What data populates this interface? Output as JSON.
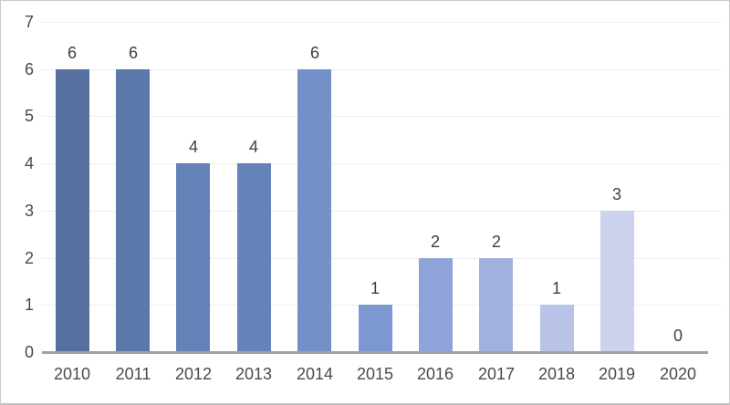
{
  "chart_data": {
    "type": "bar",
    "title": "",
    "xlabel": "",
    "ylabel": "",
    "categories": [
      "2010",
      "2011",
      "2012",
      "2013",
      "2014",
      "2015",
      "2016",
      "2017",
      "2018",
      "2019",
      "2020"
    ],
    "values": [
      6,
      6,
      4,
      4,
      6,
      1,
      2,
      2,
      1,
      3,
      0
    ],
    "data_labels": [
      "6",
      "6",
      "4",
      "4",
      "6",
      "1",
      "2",
      "2",
      "1",
      "3",
      "0"
    ],
    "ylim": [
      0,
      7
    ],
    "yticks": [
      "0",
      "1",
      "2",
      "3",
      "4",
      "5",
      "6",
      "7"
    ],
    "grid": true,
    "legend": false,
    "bar_colors": [
      "#56719F",
      "#5C78AB",
      "#6282B8",
      "#6684BC",
      "#7490C8",
      "#7C97D1",
      "#8EA3D8",
      "#A3B1DF",
      "#B9C3E7",
      "#CDD3ED",
      "#DEE2F3"
    ],
    "gridline_color": "#ededed",
    "axis_line_color": "#a2a2a2",
    "tick_label_color": "#4a4a4a",
    "data_label_color": "#3f3f3f",
    "background_color": "#ffffff"
  }
}
